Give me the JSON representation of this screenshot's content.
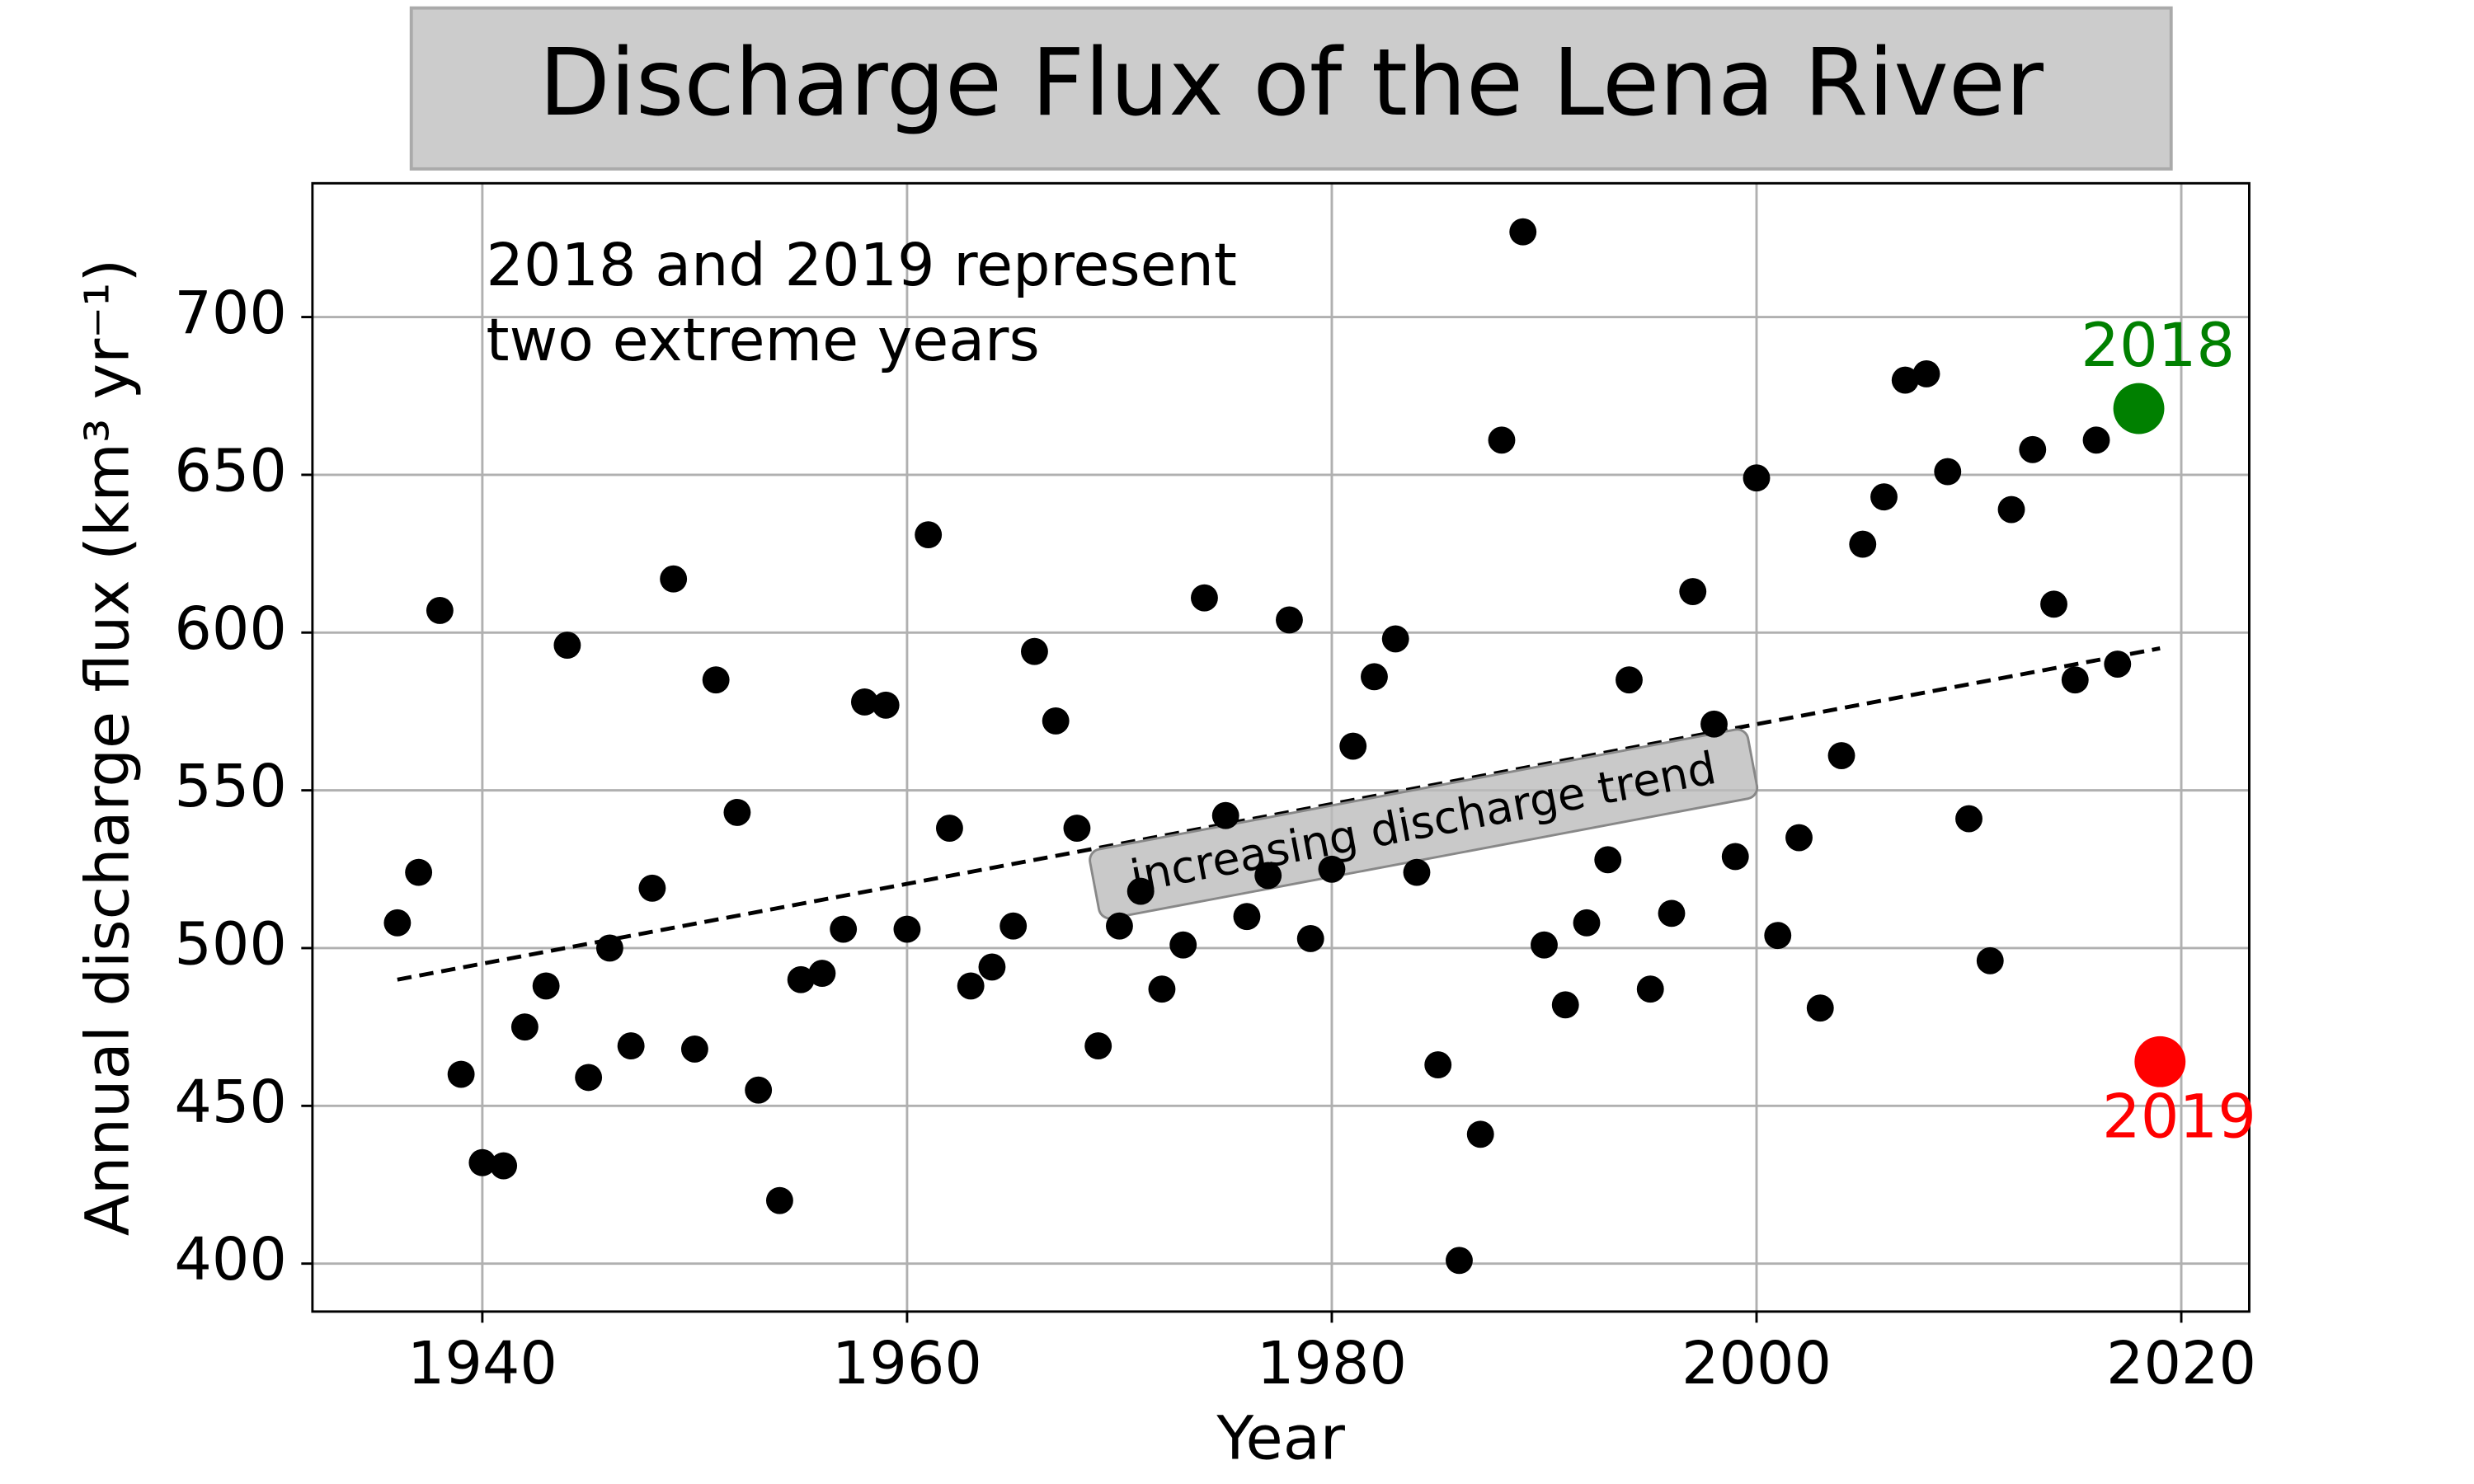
{
  "chart_data": {
    "type": "scatter",
    "title": "Discharge Flux of the Lena River",
    "x_label": "Year",
    "y_label": "Annual discharge flux (km³ yr⁻¹)",
    "annotation": [
      "2018 and 2019 represent",
      "two extreme years"
    ],
    "xlim": [
      1932,
      2023.2
    ],
    "ylim": [
      384.8,
      742.4
    ],
    "xticks": [
      1940,
      1960,
      1980,
      2000,
      2020
    ],
    "yticks": [
      400,
      450,
      500,
      550,
      600,
      650,
      700
    ],
    "grid": true,
    "series": [
      {
        "color": "#000000",
        "x": [
          1936,
          1937,
          1938,
          1939,
          1940,
          1941,
          1942,
          1943,
          1944,
          1945,
          1946,
          1947,
          1948,
          1949,
          1950,
          1951,
          1952,
          1953,
          1954,
          1955,
          1956,
          1957,
          1958,
          1959,
          1960,
          1961,
          1962,
          1963,
          1964,
          1965,
          1966,
          1967,
          1968,
          1969,
          1970,
          1971,
          1972,
          1973,
          1974,
          1975,
          1976,
          1977,
          1978,
          1979,
          1980,
          1981,
          1982,
          1983,
          1984,
          1985,
          1986,
          1987,
          1988,
          1989,
          1990,
          1991,
          1992,
          1993,
          1994,
          1995,
          1996,
          1997,
          1998,
          1999,
          2000,
          2001,
          2002,
          2003,
          2004,
          2005,
          2006,
          2007,
          2008,
          2009,
          2010,
          2011,
          2012,
          2013,
          2014,
          2015,
          2016,
          2017
        ],
        "values": [
          508,
          524,
          607,
          460,
          432,
          431,
          475,
          488,
          596,
          459,
          500,
          469,
          519,
          617,
          468,
          585,
          543,
          455,
          420,
          490,
          492,
          506,
          578,
          577,
          506,
          631,
          538,
          488,
          494,
          507,
          594,
          572,
          538,
          469,
          507,
          518,
          487,
          501,
          611,
          542,
          510,
          523,
          604,
          503,
          525,
          564,
          586,
          598,
          524,
          463,
          401,
          441,
          661,
          727,
          501,
          482,
          508,
          528,
          585,
          487,
          511,
          613,
          571,
          529,
          649,
          504,
          535,
          481,
          561,
          628,
          643,
          680,
          682,
          651,
          541,
          496,
          639,
          658,
          609,
          585,
          661,
          590
        ]
      }
    ],
    "highlights": [
      {
        "label": "2018",
        "x": 2018,
        "value": 671,
        "color": "#008000"
      },
      {
        "label": "2019",
        "x": 2019,
        "value": 464,
        "color": "#ff0000"
      }
    ],
    "trend": {
      "label": "increasing discharge trend",
      "x": [
        1936,
        2019
      ],
      "values": [
        490,
        595
      ]
    }
  }
}
